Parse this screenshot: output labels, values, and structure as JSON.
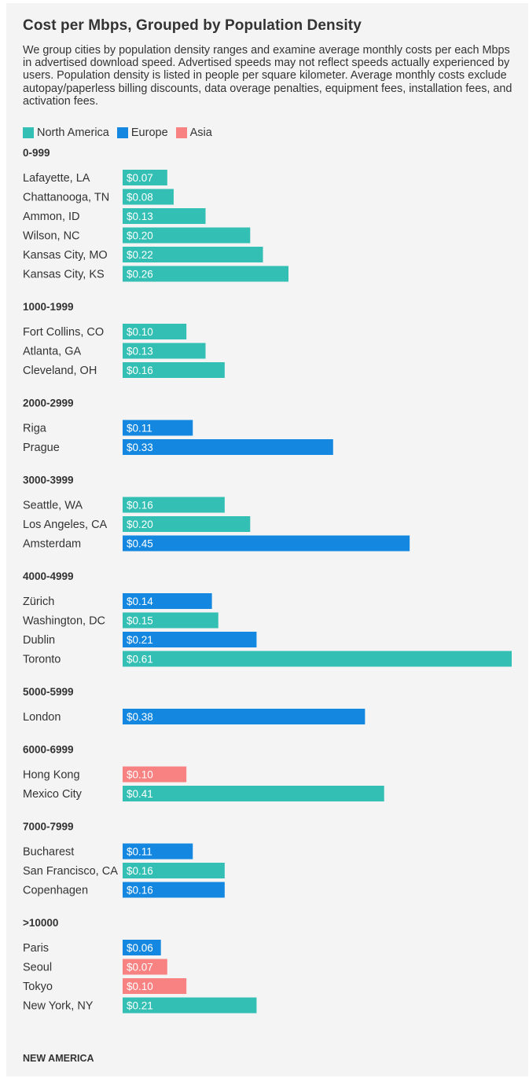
{
  "chart_data": {
    "type": "bar",
    "orientation": "horizontal",
    "title": "Cost per Mbps, Grouped by Population Density",
    "subtitle": "We group cities by population density ranges and examine average monthly costs per each Mbps in advertised download speed. Advertised speeds may not reflect speeds actually experienced by users. Population density is listed in people per square kilometer. Average monthly costs exclude autopay/paperless billing discounts, data overage penalties, equipment fees, installation fees, and activation fees.",
    "value_prefix": "$",
    "xlim": [
      0,
      0.61
    ],
    "legend": {
      "placement": "top-left",
      "entries": [
        {
          "name": "North America",
          "color": "#33bfb3"
        },
        {
          "name": "Europe",
          "color": "#1488e0"
        },
        {
          "name": "Asia",
          "color": "#f88282"
        }
      ]
    },
    "groups": [
      {
        "label": "0-999",
        "items": [
          {
            "city": "Lafayette, LA",
            "value": 0.07,
            "region": "North America"
          },
          {
            "city": "Chattanooga, TN",
            "value": 0.08,
            "region": "North America"
          },
          {
            "city": "Ammon, ID",
            "value": 0.13,
            "region": "North America"
          },
          {
            "city": "Wilson, NC",
            "value": 0.2,
            "region": "North America"
          },
          {
            "city": "Kansas City, MO",
            "value": 0.22,
            "region": "North America"
          },
          {
            "city": "Kansas City, KS",
            "value": 0.26,
            "region": "North America"
          }
        ]
      },
      {
        "label": "1000-1999",
        "items": [
          {
            "city": "Fort Collins, CO",
            "value": 0.1,
            "region": "North America"
          },
          {
            "city": "Atlanta, GA",
            "value": 0.13,
            "region": "North America"
          },
          {
            "city": "Cleveland, OH",
            "value": 0.16,
            "region": "North America"
          }
        ]
      },
      {
        "label": "2000-2999",
        "items": [
          {
            "city": "Riga",
            "value": 0.11,
            "region": "Europe"
          },
          {
            "city": "Prague",
            "value": 0.33,
            "region": "Europe"
          }
        ]
      },
      {
        "label": "3000-3999",
        "items": [
          {
            "city": "Seattle, WA",
            "value": 0.16,
            "region": "North America"
          },
          {
            "city": "Los Angeles, CA",
            "value": 0.2,
            "region": "North America"
          },
          {
            "city": "Amsterdam",
            "value": 0.45,
            "region": "Europe"
          }
        ]
      },
      {
        "label": "4000-4999",
        "items": [
          {
            "city": "Zürich",
            "value": 0.14,
            "region": "Europe"
          },
          {
            "city": "Washington, DC",
            "value": 0.15,
            "region": "North America"
          },
          {
            "city": "Dublin",
            "value": 0.21,
            "region": "Europe"
          },
          {
            "city": "Toronto",
            "value": 0.61,
            "region": "North America"
          }
        ]
      },
      {
        "label": "5000-5999",
        "items": [
          {
            "city": "London",
            "value": 0.38,
            "region": "Europe"
          }
        ]
      },
      {
        "label": "6000-6999",
        "items": [
          {
            "city": "Hong Kong",
            "value": 0.1,
            "region": "Asia"
          },
          {
            "city": "Mexico City",
            "value": 0.41,
            "region": "North America"
          }
        ]
      },
      {
        "label": "7000-7999",
        "items": [
          {
            "city": "Bucharest",
            "value": 0.11,
            "region": "Europe"
          },
          {
            "city": "San Francisco, CA",
            "value": 0.16,
            "region": "North America"
          },
          {
            "city": "Copenhagen",
            "value": 0.16,
            "region": "Europe"
          }
        ]
      },
      {
        "label": ">10000",
        "items": [
          {
            "city": "Paris",
            "value": 0.06,
            "region": "Europe"
          },
          {
            "city": "Seoul",
            "value": 0.07,
            "region": "Asia"
          },
          {
            "city": "Tokyo",
            "value": 0.1,
            "region": "Asia"
          },
          {
            "city": "New York, NY",
            "value": 0.21,
            "region": "North America"
          }
        ]
      }
    ]
  },
  "source": "NEW AMERICA"
}
